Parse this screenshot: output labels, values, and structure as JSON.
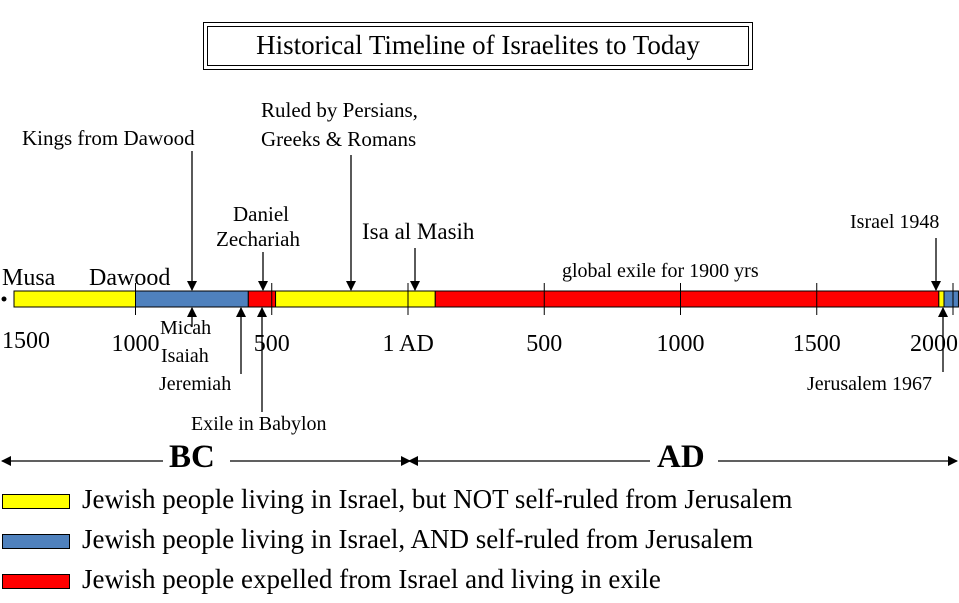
{
  "title": "Historical Timeline of Israelites to Today",
  "colors": {
    "self_ruled": "#4f81bd",
    "not_self_ruled": "#ffff00",
    "exile": "#ff0000"
  },
  "segments": [
    {
      "from": -1500,
      "to": -1000,
      "status": "not_self_ruled"
    },
    {
      "from": -1000,
      "to": -586,
      "status": "self_ruled"
    },
    {
      "from": -586,
      "to": -486,
      "status": "exile"
    },
    {
      "from": -486,
      "to": 100,
      "status": "not_self_ruled"
    },
    {
      "from": 100,
      "to": 1948,
      "status": "exile"
    },
    {
      "from": 1948,
      "to": 1967,
      "status": "not_self_ruled"
    },
    {
      "from": 1967,
      "to": 2020,
      "status": "self_ruled"
    }
  ],
  "ticks": [
    {
      "year": -1000,
      "label": "1000"
    },
    {
      "year": -500,
      "label": "500"
    },
    {
      "year": 0,
      "label": "1 AD"
    },
    {
      "year": 500,
      "label": "500"
    },
    {
      "year": 1000,
      "label": "1000"
    },
    {
      "year": 1500,
      "label": "1500"
    },
    {
      "year": 2000,
      "label": "2000"
    }
  ],
  "start_label": "1500",
  "events": {
    "musa": "Musa",
    "dawood": "Dawood",
    "kings": "Kings from Dawood",
    "daniel": "Daniel",
    "zechariah": "Zechariah",
    "ruled_1": "Ruled by Persians,",
    "ruled_2": "Greeks & Romans",
    "isa": "Isa al Masih",
    "global_exile": "global exile for 1900 yrs",
    "israel_1948": "Israel 1948",
    "micah": "Micah",
    "isaiah": "Isaiah",
    "jeremiah": "Jeremiah",
    "exile_babylon": "Exile in Babylon",
    "jerusalem_1967": "Jerusalem 1967"
  },
  "eras": {
    "bc": "BC",
    "ad": "AD"
  },
  "legend": [
    {
      "status": "not_self_ruled",
      "label": "Jewish people living in Israel, but NOT self-ruled from Jerusalem"
    },
    {
      "status": "self_ruled",
      "label": "Jewish people living in Israel, AND self-ruled from Jerusalem"
    },
    {
      "status": "exile",
      "label": "Jewish people expelled from Israel and living in exile"
    }
  ]
}
